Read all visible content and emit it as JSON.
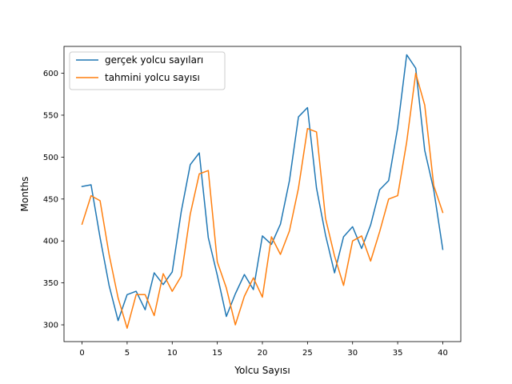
{
  "chart_data": {
    "type": "line",
    "xlabel": "Yolcu Sayısı",
    "ylabel": "Months",
    "xlim": [
      -2,
      42
    ],
    "ylim": [
      280,
      632
    ],
    "xticks": [
      0,
      5,
      10,
      15,
      20,
      25,
      30,
      35,
      40
    ],
    "yticks": [
      300,
      350,
      400,
      450,
      500,
      550,
      600
    ],
    "grid": false,
    "legend_position": "top-left",
    "x": [
      0,
      1,
      2,
      3,
      4,
      5,
      6,
      7,
      8,
      9,
      10,
      11,
      12,
      13,
      14,
      15,
      16,
      17,
      18,
      19,
      20,
      21,
      22,
      23,
      24,
      25,
      26,
      27,
      28,
      29,
      30,
      31,
      32,
      33,
      34,
      35,
      36,
      37,
      38,
      39,
      40
    ],
    "series": [
      {
        "name": "gerçek yolcu sayıları",
        "color": "#1f77b4",
        "values": [
          465,
          467,
          404,
          347,
          305,
          336,
          340,
          318,
          362,
          348,
          363,
          435,
          491,
          505,
          404,
          359,
          310,
          337,
          360,
          342,
          406,
          396,
          420,
          472,
          548,
          559,
          463,
          407,
          362,
          405,
          417,
          391,
          419,
          461,
          472,
          535,
          622,
          606,
          508,
          461,
          390
        ]
      },
      {
        "name": "tahmini yolcu sayısı",
        "color": "#ff7f0e",
        "values": [
          420,
          454,
          448,
          384,
          332,
          296,
          336,
          336,
          311,
          361,
          340,
          358,
          432,
          480,
          484,
          375,
          344,
          300,
          334,
          356,
          333,
          405,
          384,
          412,
          463,
          534,
          530,
          427,
          382,
          347,
          400,
          406,
          376,
          411,
          450,
          454,
          518,
          600,
          562,
          466,
          434
        ]
      }
    ]
  }
}
